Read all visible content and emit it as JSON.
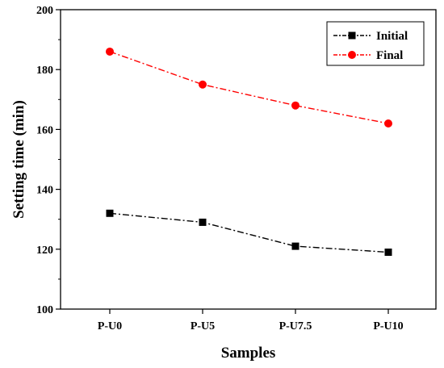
{
  "chart_data": {
    "type": "line",
    "title": "",
    "xlabel": "Samples",
    "ylabel": "Setting time (min)",
    "categories": [
      "P-U0",
      "P-U5",
      "P-U7.5",
      "P-U10"
    ],
    "ylim": [
      100,
      200
    ],
    "yticks": [
      100,
      120,
      140,
      160,
      180,
      200
    ],
    "grid": false,
    "legend_position": "top-right",
    "series": [
      {
        "name": "Initial",
        "values": [
          132,
          129,
          121,
          119
        ],
        "color": "#000000",
        "marker": "square",
        "line_style": "dash-dot"
      },
      {
        "name": "Final",
        "values": [
          186,
          175,
          168,
          162
        ],
        "color": "#ff0000",
        "marker": "circle",
        "line_style": "dash-dot"
      }
    ]
  }
}
